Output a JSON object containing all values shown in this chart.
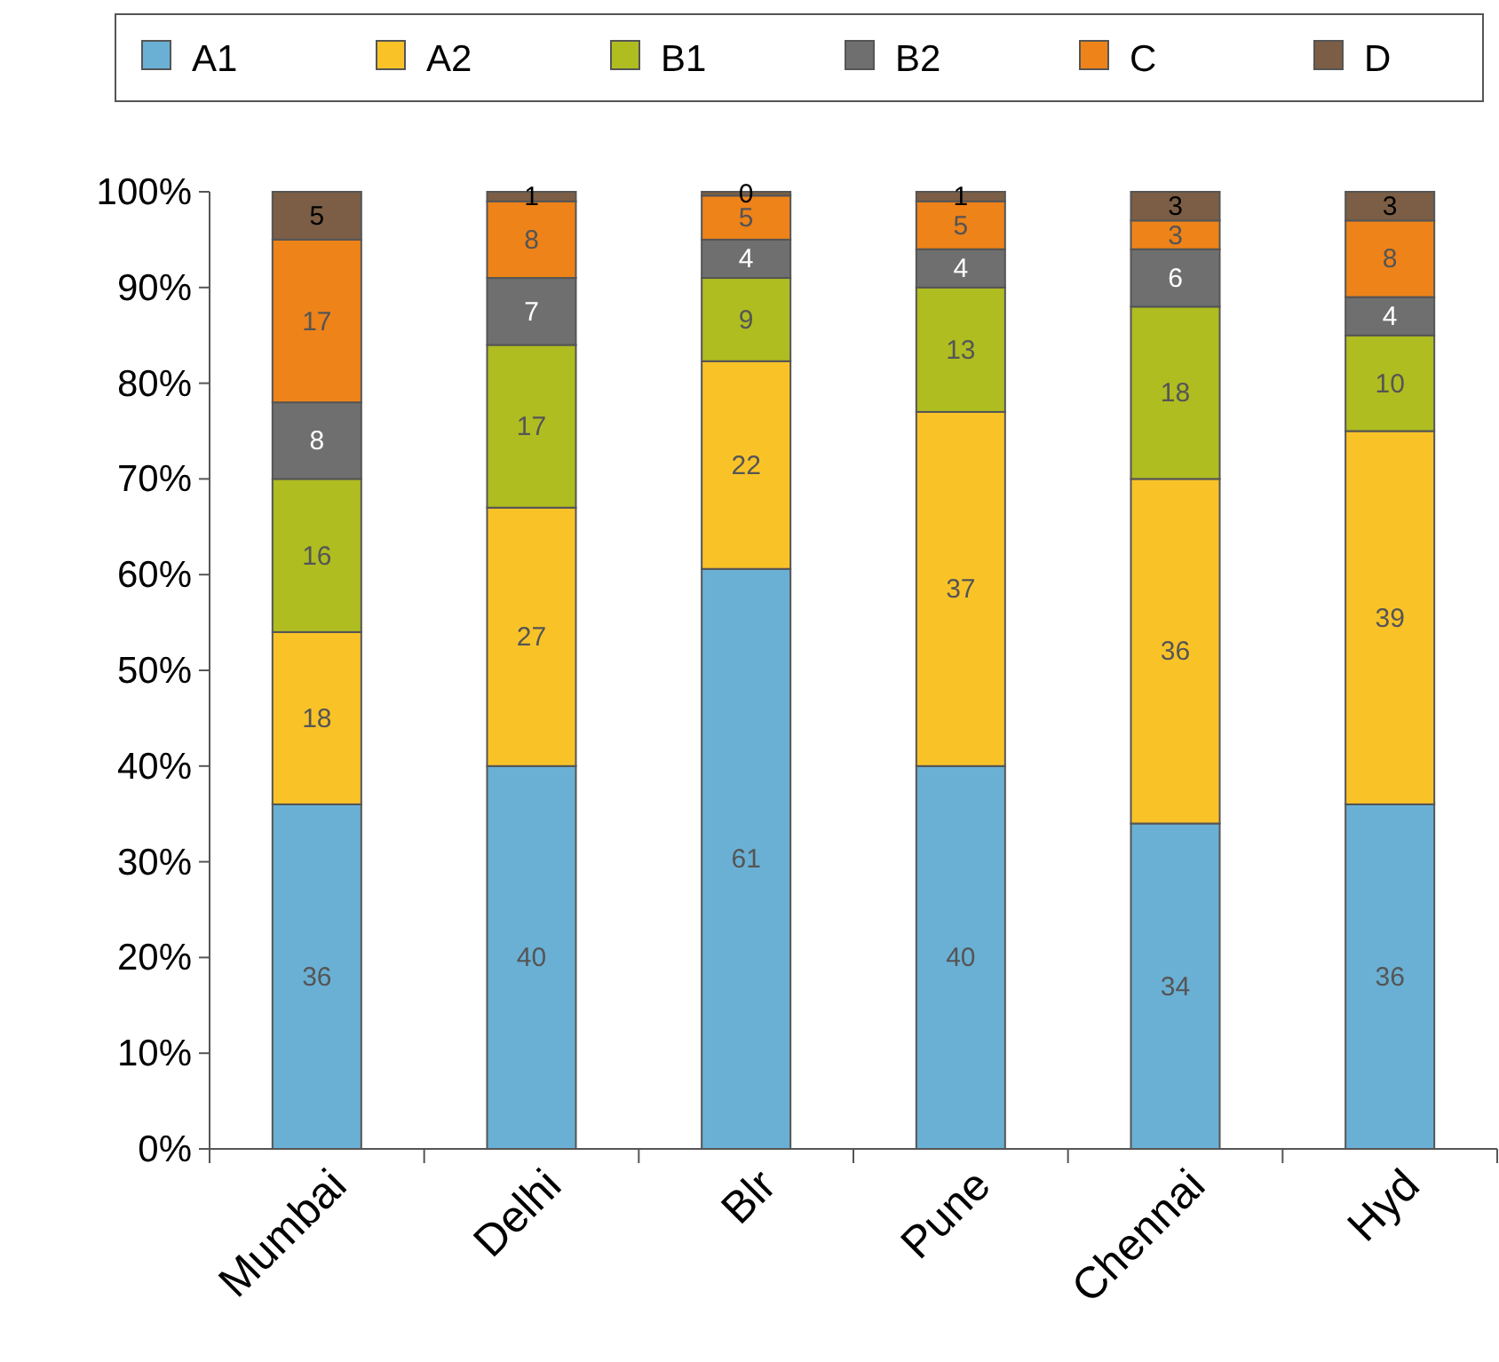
{
  "chart_data": {
    "type": "bar",
    "stacked": true,
    "categories": [
      "Mumbai",
      "Delhi",
      "Blr",
      "Pune",
      "Chennai",
      "Hyd"
    ],
    "series": [
      {
        "name": "A1",
        "color": "#6ab0d4",
        "values": [
          36,
          40,
          60.6,
          40,
          34,
          36
        ],
        "value_labels": [
          "36",
          "40",
          "61",
          "40",
          "34",
          "36"
        ]
      },
      {
        "name": "A2",
        "color": "#f9c328",
        "values": [
          18,
          27,
          21.7,
          37,
          36,
          39
        ],
        "value_labels": [
          "18",
          "27",
          "22",
          "37",
          "36",
          "39"
        ]
      },
      {
        "name": "B1",
        "color": "#afbd21",
        "values": [
          16,
          17,
          8.7,
          13,
          18,
          10
        ],
        "value_labels": [
          "16",
          "17",
          "9",
          "13",
          "18",
          "10"
        ]
      },
      {
        "name": "B2",
        "color": "#6f6f6f",
        "values": [
          8,
          7,
          4,
          4,
          6,
          4
        ],
        "value_labels": [
          "8",
          "7",
          "4",
          "4",
          "6",
          "4"
        ]
      },
      {
        "name": "C",
        "color": "#ee8319",
        "values": [
          17,
          8,
          4.6,
          5,
          3,
          8
        ],
        "value_labels": [
          "17",
          "8",
          "5",
          "5",
          "3",
          "8"
        ]
      },
      {
        "name": "D",
        "color": "#7b5e45",
        "values": [
          5,
          1,
          0.4,
          1,
          3,
          3
        ],
        "value_labels": [
          "5",
          "1",
          "0",
          "1",
          "3",
          "3"
        ]
      }
    ],
    "ylim": [
      0,
      100
    ],
    "yticks": [
      {
        "value": 0,
        "label": "0%"
      },
      {
        "value": 10,
        "label": "10%"
      },
      {
        "value": 20,
        "label": "20%"
      },
      {
        "value": 30,
        "label": "30%"
      },
      {
        "value": 40,
        "label": "40%"
      },
      {
        "value": 50,
        "label": "50%"
      },
      {
        "value": 60,
        "label": "60%"
      },
      {
        "value": 70,
        "label": "70%"
      },
      {
        "value": 80,
        "label": "80%"
      },
      {
        "value": 90,
        "label": "90%"
      },
      {
        "value": 100,
        "label": "100%"
      }
    ],
    "legend": "top"
  }
}
